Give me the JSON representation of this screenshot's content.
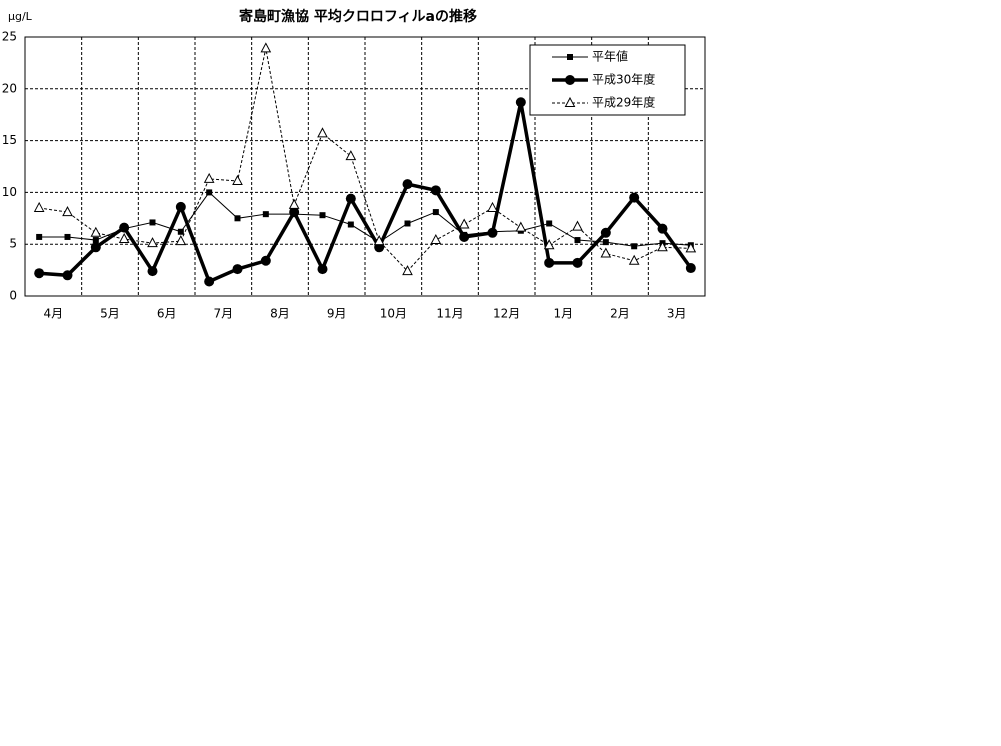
{
  "chart_data": {
    "type": "line",
    "title": "寄島町漁協  平均クロロフィルaの推移",
    "y_label": "μg/L",
    "categories": [
      "4月",
      null,
      "5月",
      null,
      "6月",
      null,
      "7月",
      null,
      "8月",
      null,
      "9月",
      null,
      "10月",
      null,
      "11月",
      null,
      "12月",
      null,
      "1月",
      null,
      "2月",
      null,
      "3月",
      null
    ],
    "ylim": [
      0,
      25
    ],
    "yticks": [
      0,
      5,
      10,
      15,
      20,
      25
    ],
    "grid": true,
    "legend": "top-right",
    "series": [
      {
        "name": "平年値",
        "color": "#000000",
        "marker": "square",
        "line": "solid",
        "values": [
          5.7,
          5.7,
          5.4,
          6.5,
          7.1,
          6.2,
          10.0,
          7.5,
          7.9,
          7.9,
          7.8,
          6.9,
          5.2,
          7.0,
          8.1,
          5.9,
          6.2,
          6.3,
          7.0,
          5.4,
          5.2,
          4.8,
          5.1,
          4.9
        ]
      },
      {
        "name": "平成30年度",
        "color": "#000000",
        "marker": "circle",
        "line": "bold",
        "values": [
          2.2,
          2.0,
          4.7,
          6.6,
          2.4,
          8.6,
          1.4,
          2.6,
          3.4,
          8.1,
          2.6,
          9.4,
          4.7,
          10.8,
          10.2,
          5.7,
          6.1,
          18.7,
          3.2,
          3.2,
          6.1,
          9.5,
          6.5,
          2.7
        ]
      },
      {
        "name": "平成29年度",
        "color": "#000000",
        "marker": "triangle",
        "line": "dashed",
        "values": [
          8.5,
          8.1,
          6.1,
          5.5,
          5.1,
          5.3,
          11.3,
          11.1,
          23.9,
          8.8,
          15.7,
          13.5,
          5.3,
          2.4,
          5.4,
          6.9,
          8.5,
          6.6,
          4.9,
          6.7,
          4.1,
          3.4,
          4.7,
          4.6
        ]
      }
    ]
  }
}
